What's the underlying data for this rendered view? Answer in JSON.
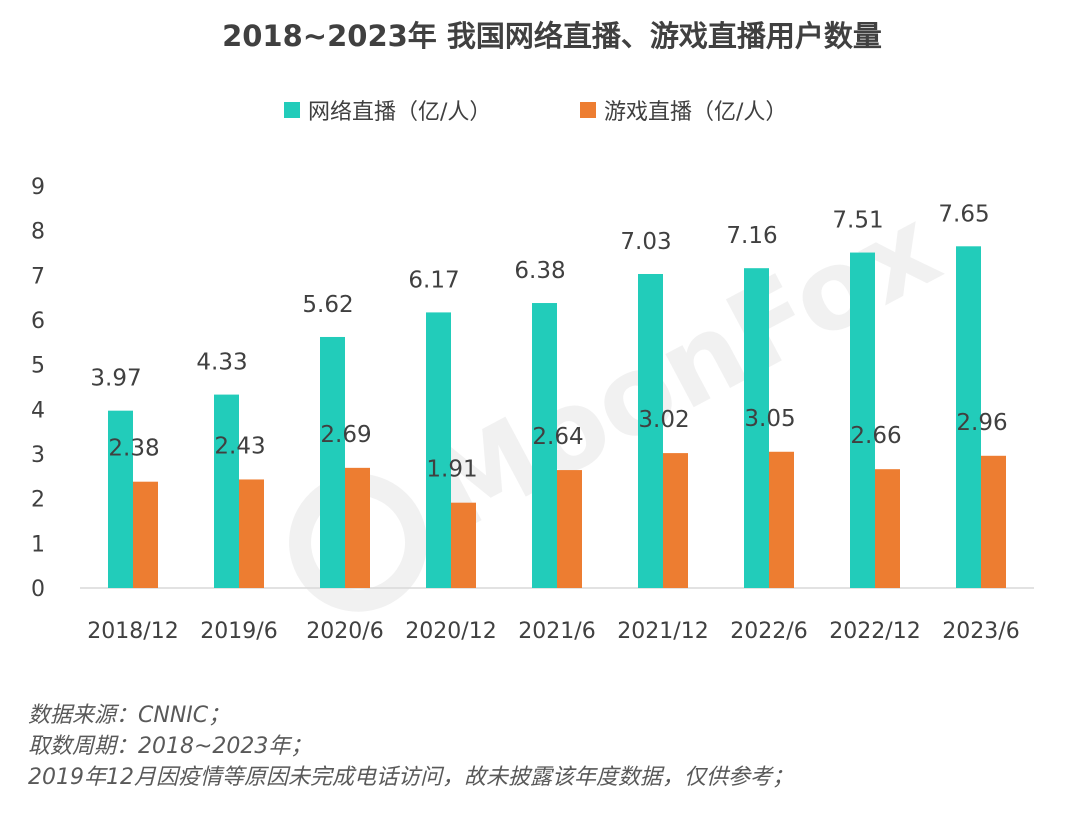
{
  "chart_data": {
    "type": "bar",
    "title": "2018~2023年 我国网络直播、游戏直播用户数量",
    "categories": [
      "2018/12",
      "2019/6",
      "2020/6",
      "2020/12",
      "2021/6",
      "2021/12",
      "2022/6",
      "2022/12",
      "2023/6"
    ],
    "series": [
      {
        "name": "网络直播（亿/人）",
        "color": "#22ccba",
        "values": [
          3.97,
          4.33,
          5.62,
          6.17,
          6.38,
          7.03,
          7.16,
          7.51,
          7.65
        ]
      },
      {
        "name": "游戏直播（亿/人）",
        "color": "#ed7d31",
        "values": [
          2.38,
          2.43,
          2.69,
          1.91,
          2.64,
          3.02,
          3.05,
          2.66,
          2.96
        ]
      }
    ],
    "yticks": [
      "0",
      "1",
      "2",
      "3",
      "4",
      "5",
      "6",
      "7",
      "8",
      "9"
    ],
    "ylim": [
      0,
      9
    ],
    "legend_position": "top",
    "grid": false
  },
  "watermark": "MoonFox",
  "footer": [
    "数据来源：CNNIC；",
    "取数周期：2018~2023年；",
    "2019年12月因疫情等原因未完成电话访问，故未披露该年度数据，仅供参考；"
  ]
}
